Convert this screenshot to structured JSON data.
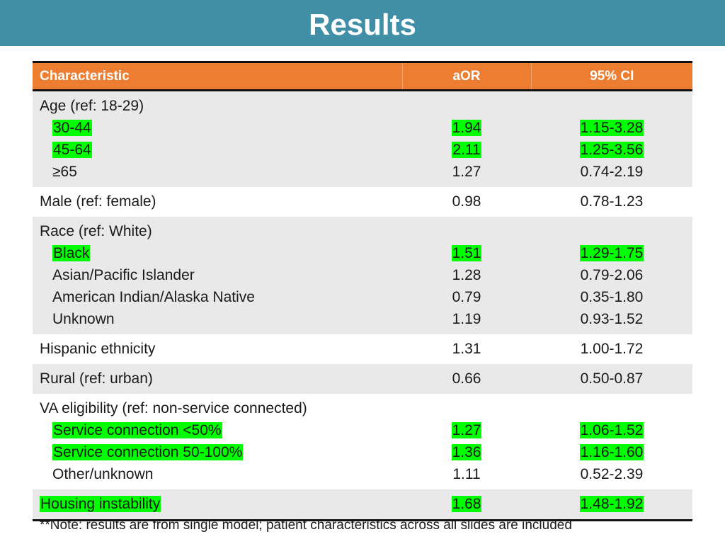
{
  "slide": {
    "title": "Results",
    "note": "**Note: results are from single model; patient characteristics across all slides are included"
  },
  "colors": {
    "title_bar": "#418fa7",
    "header_row": "#ed7d31",
    "highlight": "#00ff00",
    "shaded_row": "#e9e9e9"
  },
  "table": {
    "headers": {
      "characteristic": "Characteristic",
      "aor": "aOR",
      "ci": "95% CI"
    },
    "groups": [
      {
        "label": "Age (ref: 18-29)",
        "rows": [
          {
            "label": "30-44",
            "aor": "1.94",
            "ci": "1.15-3.28",
            "highlight": true
          },
          {
            "label": "45-64",
            "aor": "2.11",
            "ci": "1.25-3.56",
            "highlight": true
          },
          {
            "label": "≥65",
            "aor": "1.27",
            "ci": "0.74-2.19",
            "highlight": false
          }
        ]
      },
      {
        "label": "Male (ref: female)",
        "aor": "0.98",
        "ci": "0.78-1.23",
        "highlight": false
      },
      {
        "label": "Race (ref: White)",
        "rows": [
          {
            "label": "Black",
            "aor": "1.51",
            "ci": "1.29-1.75",
            "highlight": true
          },
          {
            "label": "Asian/Pacific Islander",
            "aor": "1.28",
            "ci": "0.79-2.06",
            "highlight": false
          },
          {
            "label": "American Indian/Alaska Native",
            "aor": "0.79",
            "ci": "0.35-1.80",
            "highlight": false
          },
          {
            "label": "Unknown",
            "aor": "1.19",
            "ci": "0.93-1.52",
            "highlight": false
          }
        ]
      },
      {
        "label": "Hispanic ethnicity",
        "aor": "1.31",
        "ci": "1.00-1.72",
        "highlight": false
      },
      {
        "label": "Rural (ref: urban)",
        "aor": "0.66",
        "ci": "0.50-0.87",
        "highlight": false
      },
      {
        "label": "VA eligibility (ref: non-service connected)",
        "rows": [
          {
            "label": "Service connection <50%",
            "aor": "1.27",
            "ci": "1.06-1.52",
            "highlight": true
          },
          {
            "label": "Service connection 50-100%",
            "aor": "1.36",
            "ci": "1.16-1.60",
            "highlight": true
          },
          {
            "label": "Other/unknown",
            "aor": "1.11",
            "ci": "0.52-2.39",
            "highlight": false
          }
        ]
      },
      {
        "label": "Housing instability",
        "aor": "1.68",
        "ci": "1.48-1.92",
        "highlight": true
      }
    ]
  }
}
